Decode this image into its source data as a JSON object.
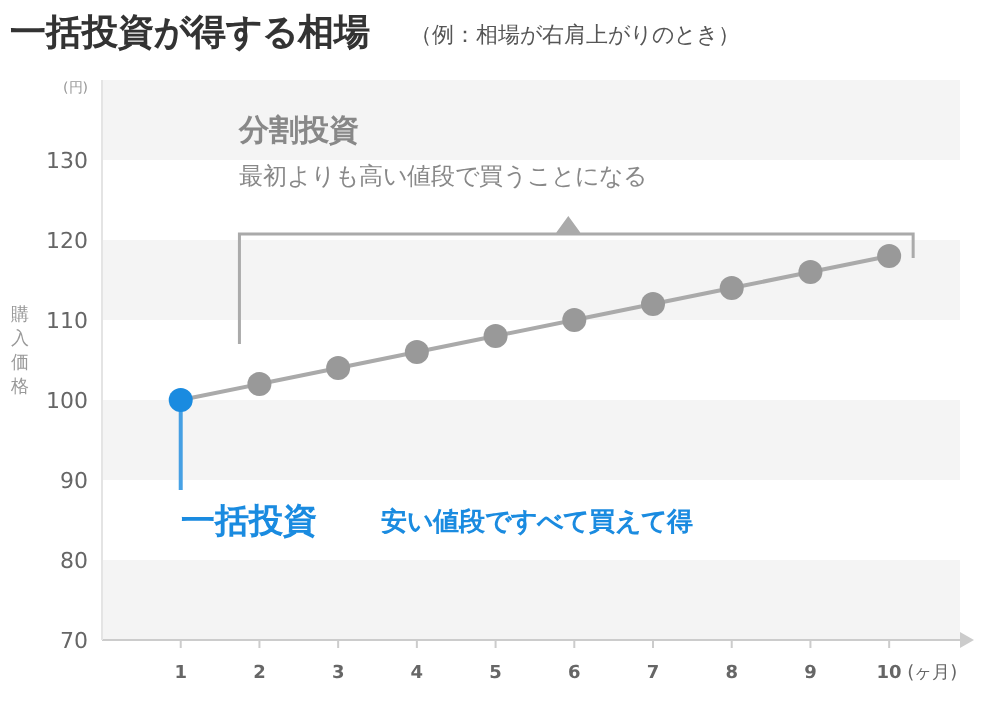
{
  "chart_data": {
    "type": "line",
    "title": "一括投資が得する相場",
    "subtitle": "（例：相場が右肩上がりのとき）",
    "xlabel": "(ヶ月)",
    "ylabel": "購入価格",
    "annotations": [
      "(円)",
      "分割投資",
      "最初よりも高い値段で買うことになる",
      {
        "text": "一括投資",
        "x": 1,
        "y": 100
      },
      "安い値段ですべて買えて得"
    ],
    "x": [
      1,
      2,
      3,
      4,
      5,
      6,
      7,
      8,
      9,
      10
    ],
    "series": [
      {
        "color": "#aaaaaa",
        "colors": [
          "#1a8be0",
          "#999999",
          "#999999",
          "#999999",
          "#999999",
          "#999999",
          "#999999",
          "#999999",
          "#999999",
          "#999999"
        ],
        "values": [
          100,
          102,
          104,
          106,
          108,
          110,
          112,
          114,
          116,
          118
        ]
      }
    ],
    "xlim": [
      0,
      10.9
    ],
    "ylim": [
      70,
      140
    ],
    "xticks": [
      1,
      2,
      3,
      4,
      5,
      6,
      7,
      8,
      9,
      10
    ],
    "yticks": [
      70,
      80,
      90,
      100,
      110,
      120,
      130
    ],
    "bands": [
      {
        "axis": "y",
        "from": 70,
        "to": 80,
        "color": "#f4f4f4"
      },
      {
        "axis": "y",
        "from": 90,
        "to": 100,
        "color": "#f4f4f4"
      },
      {
        "axis": "y",
        "from": 110,
        "to": 120,
        "color": "#f4f4f4"
      },
      {
        "axis": "y",
        "from": 130,
        "to": 140,
        "color": "#f4f4f4"
      }
    ],
    "grid": false,
    "marker": "circle",
    "line_style": "solid"
  }
}
